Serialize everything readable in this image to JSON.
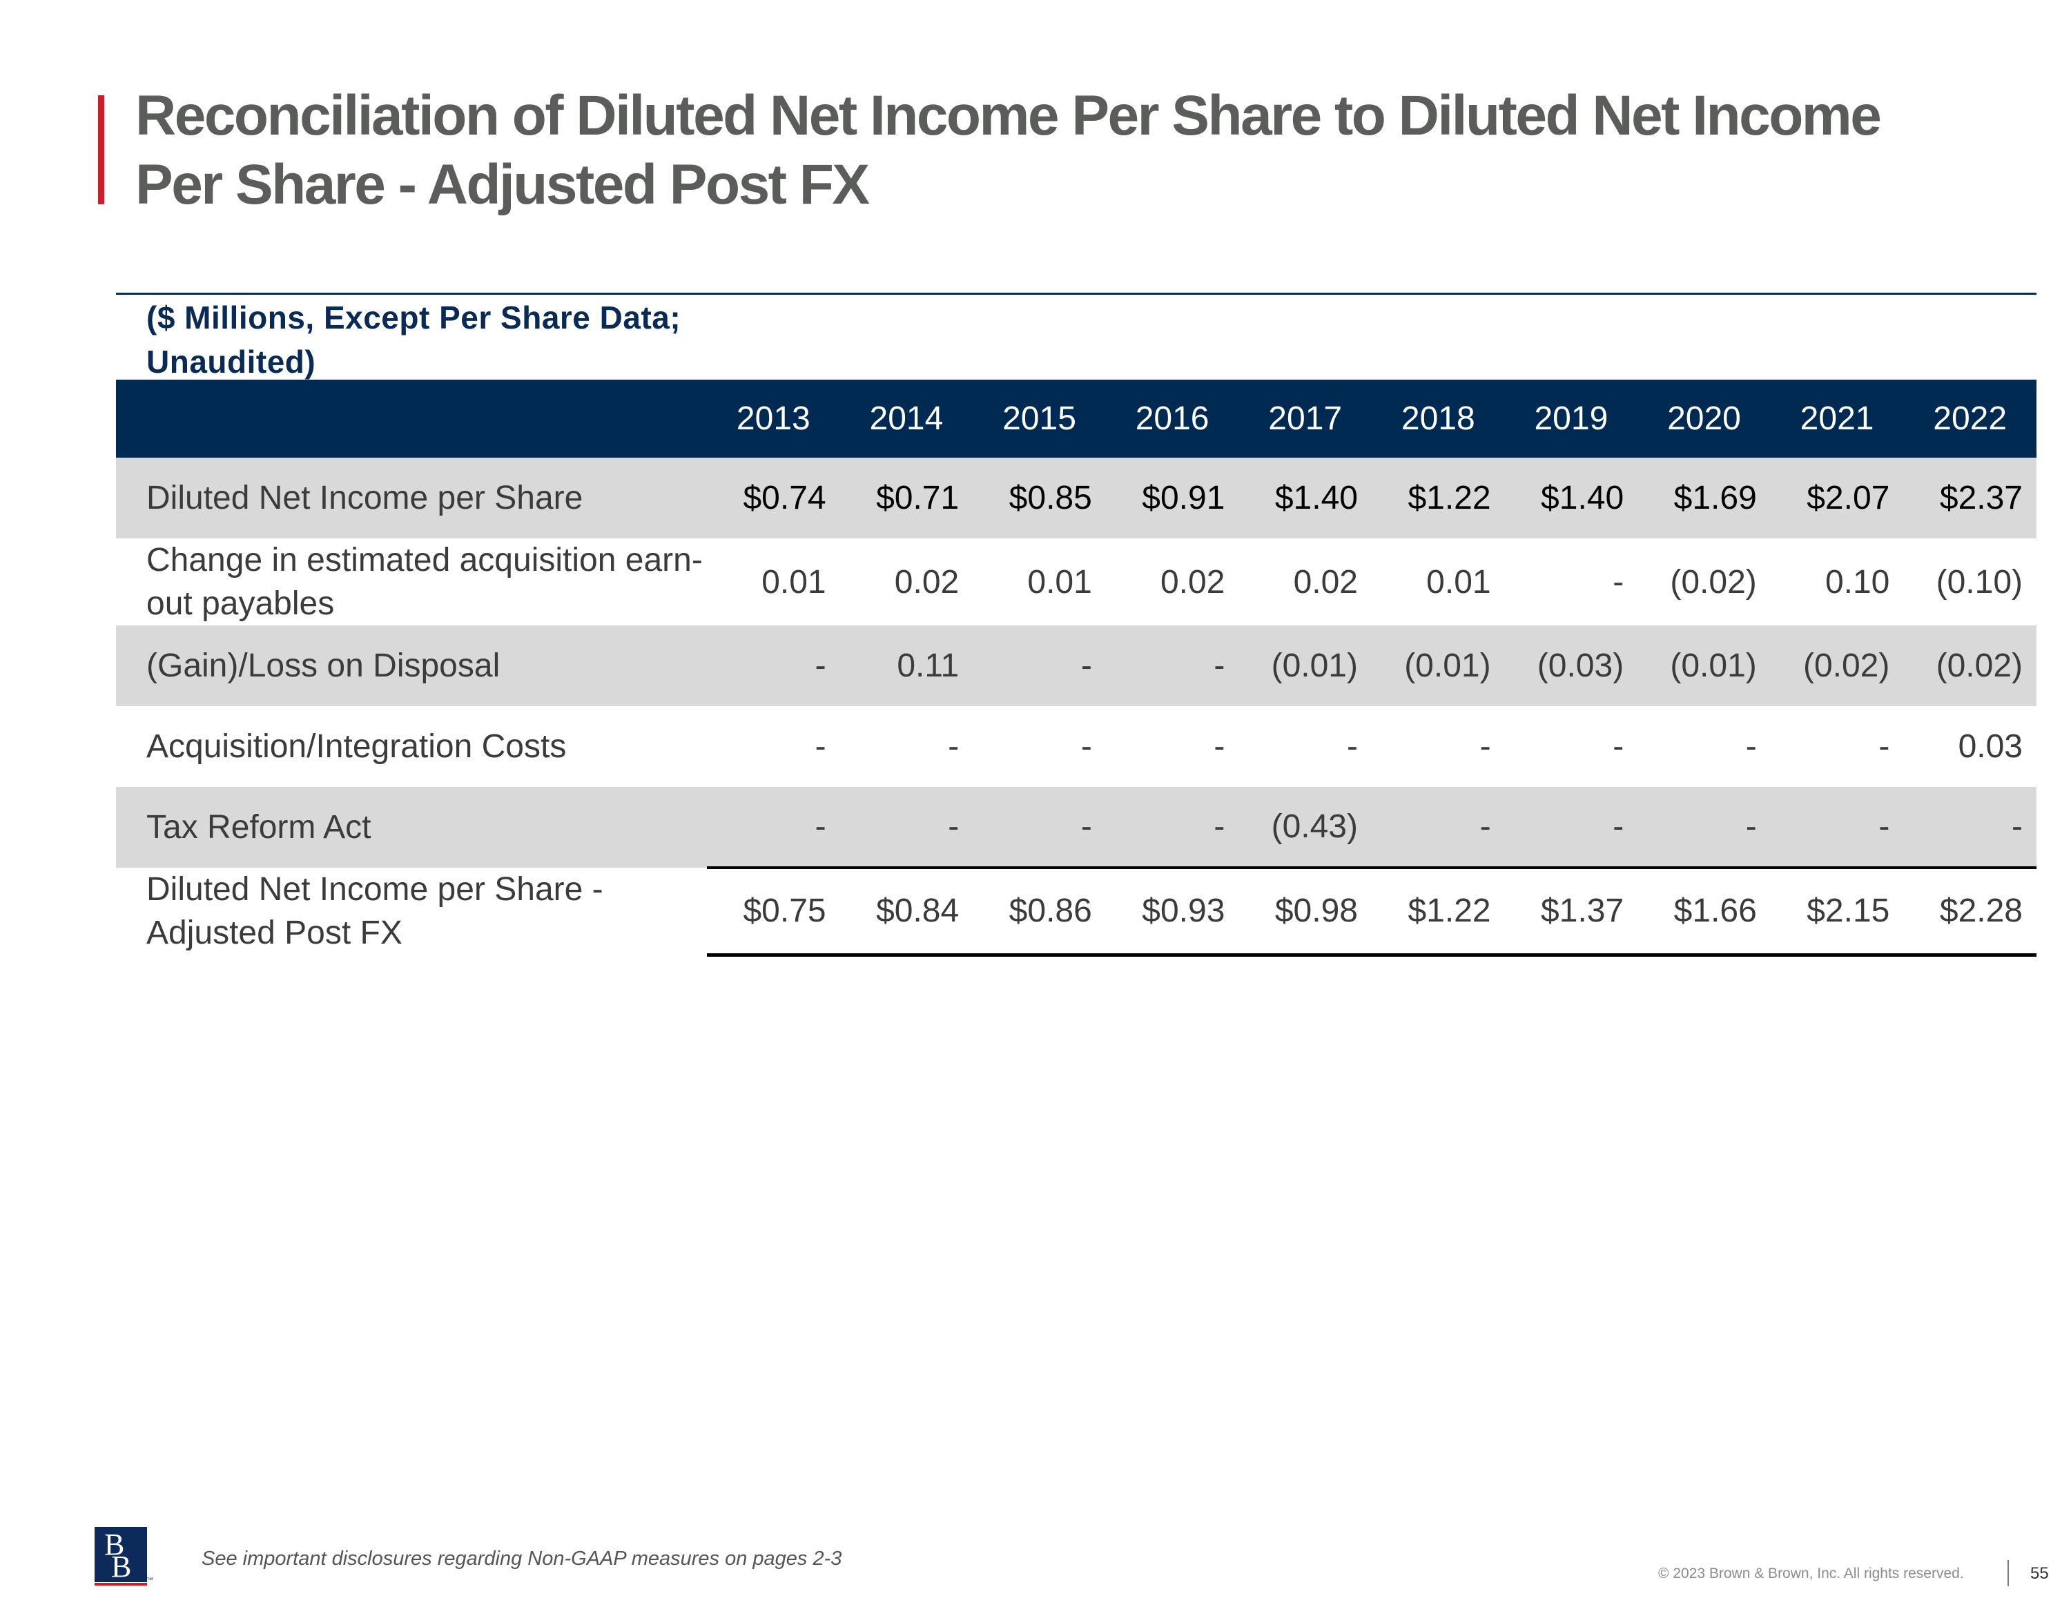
{
  "title": {
    "line1": "Reconciliation of Diluted Net Income Per Share to Diluted Net Income",
    "line2": "Per Share - Adjusted Post FX"
  },
  "table": {
    "units_note": "($ Millions, Except Per Share Data; Unaudited)",
    "years": [
      "2013",
      "2014",
      "2015",
      "2016",
      "2017",
      "2018",
      "2019",
      "2020",
      "2021",
      "2022"
    ],
    "rows": [
      {
        "label": "Diluted Net Income per Share",
        "values": [
          "$0.74",
          "$0.71",
          "$0.85",
          "$0.91",
          "$1.40",
          "$1.22",
          "$1.40",
          "$1.69",
          "$2.07",
          "$2.37"
        ]
      },
      {
        "label": "Change in estimated acquisition earn-out payables",
        "values": [
          "0.01",
          "0.02",
          "0.01",
          "0.02",
          "0.02",
          "0.01",
          "-",
          "(0.02)",
          "0.10",
          "(0.10)"
        ]
      },
      {
        "label": "(Gain)/Loss on Disposal",
        "values": [
          "-",
          "0.11",
          "-",
          "-",
          "(0.01)",
          "(0.01)",
          "(0.03)",
          "(0.01)",
          "(0.02)",
          "(0.02)"
        ]
      },
      {
        "label": "Acquisition/Integration Costs",
        "values": [
          "-",
          "-",
          "-",
          "-",
          "-",
          "-",
          "-",
          "-",
          "-",
          "0.03"
        ]
      },
      {
        "label": "Tax Reform Act",
        "values": [
          "-",
          "-",
          "-",
          "-",
          "(0.43)",
          "-",
          "-",
          "-",
          "-",
          "-"
        ]
      },
      {
        "label": "Diluted Net Income per Share - Adjusted Post FX",
        "values": [
          "$0.75",
          "$0.84",
          "$0.86",
          "$0.93",
          "$0.98",
          "$1.22",
          "$1.37",
          "$1.66",
          "$2.15",
          "$2.28"
        ]
      }
    ]
  },
  "footer": {
    "logo_text": "BB",
    "logo_tm": "™",
    "note": "See important disclosures regarding Non-GAAP measures on pages 2-3",
    "copyright": "© 2023 Brown & Brown, Inc. All rights reserved.",
    "page_number": "55"
  },
  "colors": {
    "accent_red": "#c8202f",
    "navy": "#002a52",
    "title_gray": "#5b5d5a",
    "row_shade": "#d9d9d9"
  }
}
